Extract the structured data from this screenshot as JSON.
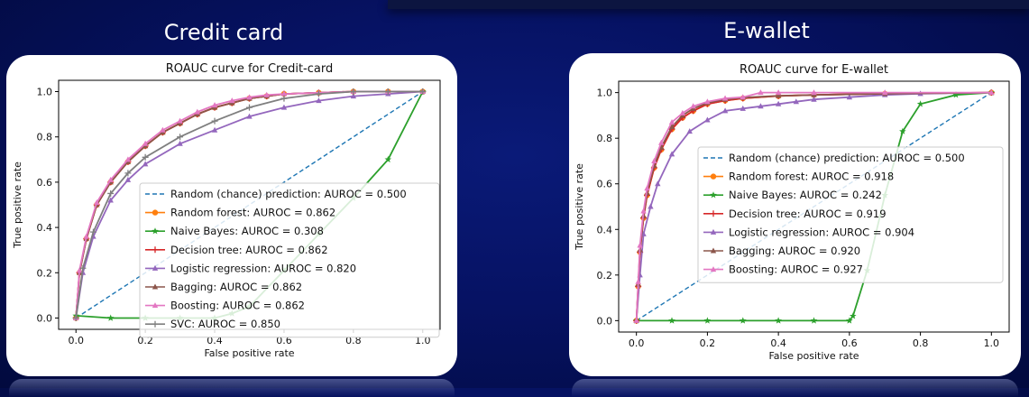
{
  "panels": {
    "credit": {
      "title": "Credit card"
    },
    "ewallet": {
      "title": "E-wallet"
    }
  },
  "colors": {
    "random": "#1f77b4",
    "random_forest": "#ff7f0e",
    "naive_bayes": "#2ca02c",
    "decision_tree": "#d62728",
    "logistic_regression": "#9467bd",
    "bagging": "#8c564b",
    "boosting": "#e377c2",
    "svc": "#7f7f7f"
  },
  "chart_data": [
    {
      "type": "line",
      "title": "ROAUC curve for Credit-card",
      "xlabel": "False positive rate",
      "ylabel": "True positive rate",
      "xlim": [
        -0.05,
        1.05
      ],
      "ylim": [
        -0.05,
        1.05
      ],
      "xticks": [
        "0.0",
        "0.2",
        "0.4",
        "0.6",
        "0.8",
        "1.0"
      ],
      "yticks": [
        "0.0",
        "0.2",
        "0.4",
        "0.6",
        "0.8",
        "1.0"
      ],
      "grid": false,
      "legend_position": "lower right",
      "series": [
        {
          "name": "Random (chance) prediction: AUROC = 0.500",
          "color_key": "random",
          "style": "dashed",
          "marker": "none",
          "x": [
            0,
            1
          ],
          "y": [
            0,
            1
          ]
        },
        {
          "name": "Random forest: AUROC = 0.862",
          "color_key": "random_forest",
          "style": "solid",
          "marker": "circle",
          "x": [
            0,
            0.01,
            0.03,
            0.06,
            0.1,
            0.15,
            0.2,
            0.25,
            0.3,
            0.35,
            0.4,
            0.45,
            0.5,
            0.55,
            0.6,
            0.7,
            0.8,
            0.9,
            1.0
          ],
          "y": [
            0,
            0.2,
            0.35,
            0.5,
            0.6,
            0.69,
            0.76,
            0.82,
            0.86,
            0.9,
            0.93,
            0.95,
            0.97,
            0.98,
            0.99,
            0.995,
            1.0,
            1.0,
            1.0
          ]
        },
        {
          "name": "Naive Bayes: AUROC = 0.308",
          "color_key": "naive_bayes",
          "style": "solid",
          "marker": "star",
          "x": [
            0,
            0.1,
            0.2,
            0.3,
            0.4,
            0.45,
            0.5,
            0.6,
            0.7,
            0.8,
            0.9,
            1.0
          ],
          "y": [
            0.01,
            0.0,
            0.0,
            0.0,
            0.0,
            0.02,
            0.05,
            0.21,
            0.37,
            0.53,
            0.7,
            1.0
          ]
        },
        {
          "name": "Decision tree: AUROC = 0.862",
          "color_key": "decision_tree",
          "style": "solid",
          "marker": "plus",
          "x": [
            0,
            0.01,
            0.03,
            0.06,
            0.1,
            0.15,
            0.2,
            0.25,
            0.3,
            0.35,
            0.4,
            0.45,
            0.5,
            0.55,
            0.6,
            0.7,
            0.8,
            0.9,
            1.0
          ],
          "y": [
            0,
            0.2,
            0.35,
            0.5,
            0.6,
            0.69,
            0.76,
            0.82,
            0.86,
            0.9,
            0.93,
            0.95,
            0.97,
            0.98,
            0.99,
            0.995,
            1.0,
            1.0,
            1.0
          ]
        },
        {
          "name": "Logistic regression: AUROC = 0.820",
          "color_key": "logistic_regression",
          "style": "solid",
          "marker": "triangle",
          "x": [
            0,
            0.02,
            0.05,
            0.1,
            0.15,
            0.2,
            0.3,
            0.4,
            0.5,
            0.6,
            0.7,
            0.8,
            0.9,
            1.0
          ],
          "y": [
            0,
            0.2,
            0.36,
            0.52,
            0.61,
            0.68,
            0.77,
            0.83,
            0.89,
            0.93,
            0.96,
            0.98,
            0.99,
            1.0
          ]
        },
        {
          "name": "Bagging: AUROC = 0.862",
          "color_key": "bagging",
          "style": "solid",
          "marker": "triangle",
          "x": [
            0,
            0.01,
            0.03,
            0.06,
            0.1,
            0.15,
            0.2,
            0.25,
            0.3,
            0.35,
            0.4,
            0.45,
            0.5,
            0.55,
            0.6,
            0.7,
            0.8,
            0.9,
            1.0
          ],
          "y": [
            0,
            0.2,
            0.35,
            0.5,
            0.6,
            0.69,
            0.76,
            0.82,
            0.86,
            0.9,
            0.93,
            0.95,
            0.97,
            0.98,
            0.99,
            0.995,
            1.0,
            1.0,
            1.0
          ]
        },
        {
          "name": "Boosting: AUROC = 0.862",
          "color_key": "boosting",
          "style": "solid",
          "marker": "triangle",
          "x": [
            0,
            0.01,
            0.03,
            0.06,
            0.1,
            0.15,
            0.2,
            0.25,
            0.3,
            0.35,
            0.4,
            0.45,
            0.5,
            0.55,
            0.6,
            0.7,
            0.8,
            0.9,
            1.0
          ],
          "y": [
            0,
            0.21,
            0.36,
            0.51,
            0.61,
            0.7,
            0.77,
            0.83,
            0.87,
            0.91,
            0.94,
            0.96,
            0.975,
            0.985,
            0.99,
            0.995,
            1.0,
            1.0,
            1.0
          ]
        },
        {
          "name": "SVC: AUROC = 0.850",
          "color_key": "svc",
          "style": "solid",
          "marker": "plus",
          "x": [
            0,
            0.02,
            0.05,
            0.1,
            0.15,
            0.2,
            0.3,
            0.4,
            0.5,
            0.6,
            0.7,
            0.8,
            0.9,
            1.0
          ],
          "y": [
            0,
            0.22,
            0.38,
            0.55,
            0.64,
            0.71,
            0.8,
            0.87,
            0.93,
            0.97,
            0.99,
            1.0,
            1.0,
            1.0
          ]
        }
      ]
    },
    {
      "type": "line",
      "title": "ROAUC curve for E-wallet",
      "xlabel": "False positive rate",
      "ylabel": "True positive rate",
      "xlim": [
        -0.05,
        1.05
      ],
      "ylim": [
        -0.05,
        1.05
      ],
      "xticks": [
        "0.0",
        "0.2",
        "0.4",
        "0.6",
        "0.8",
        "1.0"
      ],
      "yticks": [
        "0.0",
        "0.2",
        "0.4",
        "0.6",
        "0.8",
        "1.0"
      ],
      "grid": false,
      "legend_position": "center right",
      "series": [
        {
          "name": "Random (chance) prediction: AUROC = 0.500",
          "color_key": "random",
          "style": "dashed",
          "marker": "none",
          "x": [
            0,
            1
          ],
          "y": [
            0,
            1
          ]
        },
        {
          "name": "Random forest: AUROC = 0.918",
          "color_key": "random_forest",
          "style": "solid",
          "marker": "circle",
          "x": [
            0,
            0.005,
            0.01,
            0.02,
            0.03,
            0.05,
            0.07,
            0.1,
            0.13,
            0.16,
            0.2,
            0.25,
            0.3,
            0.4,
            0.5,
            0.7,
            1.0
          ],
          "y": [
            0,
            0.15,
            0.3,
            0.45,
            0.55,
            0.67,
            0.75,
            0.84,
            0.89,
            0.92,
            0.95,
            0.965,
            0.975,
            0.985,
            0.99,
            0.995,
            1.0
          ]
        },
        {
          "name": "Naive Bayes: AUROC = 0.242",
          "color_key": "naive_bayes",
          "style": "solid",
          "marker": "star",
          "x": [
            0,
            0.1,
            0.2,
            0.3,
            0.4,
            0.5,
            0.6,
            0.61,
            0.65,
            0.7,
            0.75,
            0.8,
            0.9,
            1.0
          ],
          "y": [
            0.0,
            0.0,
            0.0,
            0.0,
            0.0,
            0.0,
            0.0,
            0.02,
            0.22,
            0.55,
            0.83,
            0.95,
            0.99,
            1.0
          ]
        },
        {
          "name": "Decision tree: AUROC = 0.919",
          "color_key": "decision_tree",
          "style": "solid",
          "marker": "plus",
          "x": [
            0,
            0.005,
            0.01,
            0.02,
            0.03,
            0.05,
            0.07,
            0.1,
            0.13,
            0.16,
            0.2,
            0.25,
            0.3,
            0.4,
            0.5,
            0.7,
            1.0
          ],
          "y": [
            0,
            0.15,
            0.3,
            0.45,
            0.55,
            0.67,
            0.75,
            0.84,
            0.89,
            0.92,
            0.95,
            0.965,
            0.975,
            0.985,
            0.99,
            0.995,
            1.0
          ]
        },
        {
          "name": "Logistic regression: AUROC = 0.904",
          "color_key": "logistic_regression",
          "style": "solid",
          "marker": "triangle",
          "x": [
            0,
            0.01,
            0.02,
            0.04,
            0.06,
            0.1,
            0.15,
            0.2,
            0.25,
            0.3,
            0.35,
            0.4,
            0.45,
            0.5,
            0.6,
            0.7,
            0.8,
            1.0
          ],
          "y": [
            0,
            0.2,
            0.38,
            0.5,
            0.6,
            0.73,
            0.83,
            0.88,
            0.92,
            0.93,
            0.94,
            0.95,
            0.96,
            0.97,
            0.98,
            0.99,
            0.995,
            1.0
          ]
        },
        {
          "name": "Bagging: AUROC = 0.920",
          "color_key": "bagging",
          "style": "solid",
          "marker": "triangle",
          "x": [
            0,
            0.005,
            0.01,
            0.02,
            0.03,
            0.05,
            0.07,
            0.1,
            0.13,
            0.16,
            0.2,
            0.25,
            0.3,
            0.4,
            0.5,
            0.7,
            1.0
          ],
          "y": [
            0,
            0.16,
            0.31,
            0.46,
            0.56,
            0.68,
            0.76,
            0.85,
            0.9,
            0.93,
            0.955,
            0.97,
            0.978,
            0.986,
            0.99,
            0.995,
            1.0
          ]
        },
        {
          "name": "Boosting: AUROC = 0.927",
          "color_key": "boosting",
          "style": "solid",
          "marker": "triangle",
          "x": [
            0,
            0.005,
            0.01,
            0.02,
            0.03,
            0.05,
            0.07,
            0.1,
            0.13,
            0.16,
            0.2,
            0.25,
            0.3,
            0.35,
            0.4,
            0.5,
            0.7,
            1.0
          ],
          "y": [
            0,
            0.17,
            0.33,
            0.48,
            0.58,
            0.7,
            0.78,
            0.87,
            0.91,
            0.94,
            0.96,
            0.975,
            0.98,
            1.0,
            1.0,
            1.0,
            1.0,
            1.0
          ]
        }
      ]
    }
  ]
}
